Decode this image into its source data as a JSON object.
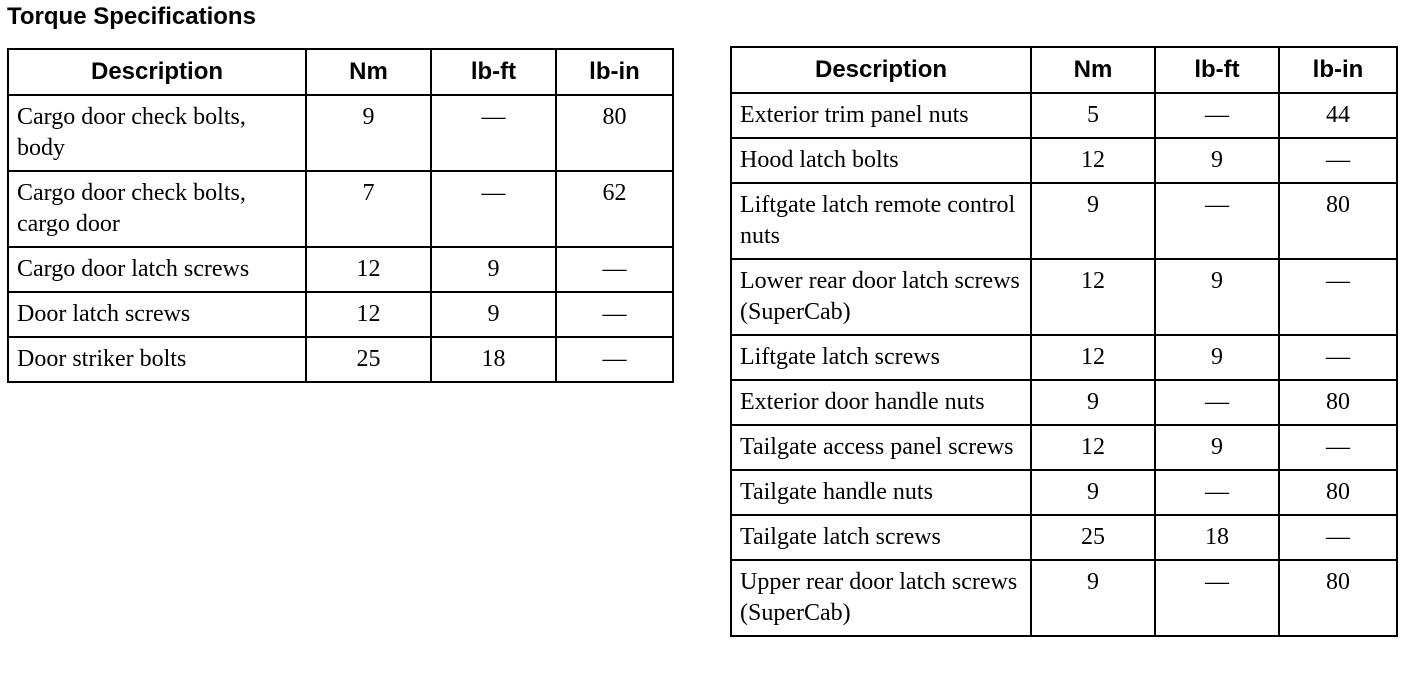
{
  "title": "Torque Specifications",
  "headers": [
    "Description",
    "Nm",
    "lb-ft",
    "lb-in"
  ],
  "left_table": [
    [
      "Cargo door check bolts, body",
      "9",
      "—",
      "80"
    ],
    [
      "Cargo door check bolts, cargo door",
      "7",
      "—",
      "62"
    ],
    [
      "Cargo door latch screws",
      "12",
      "9",
      "—"
    ],
    [
      "Door latch screws",
      "12",
      "9",
      "—"
    ],
    [
      "Door striker bolts",
      "25",
      "18",
      "—"
    ]
  ],
  "right_table": [
    [
      "Exterior trim panel nuts",
      "5",
      "—",
      "44"
    ],
    [
      "Hood latch bolts",
      "12",
      "9",
      "—"
    ],
    [
      "Liftgate latch remote control nuts",
      "9",
      "—",
      "80"
    ],
    [
      "Lower rear door latch screws (SuperCab)",
      "12",
      "9",
      "—"
    ],
    [
      "Liftgate latch screws",
      "12",
      "9",
      "—"
    ],
    [
      "Exterior door handle nuts",
      "9",
      "—",
      "80"
    ],
    [
      "Tailgate access panel screws",
      "12",
      "9",
      "—"
    ],
    [
      "Tailgate handle nuts",
      "9",
      "—",
      "80"
    ],
    [
      "Tailgate latch screws",
      "25",
      "18",
      "—"
    ],
    [
      "Upper rear door latch screws (SuperCab)",
      "9",
      "—",
      "80"
    ]
  ]
}
